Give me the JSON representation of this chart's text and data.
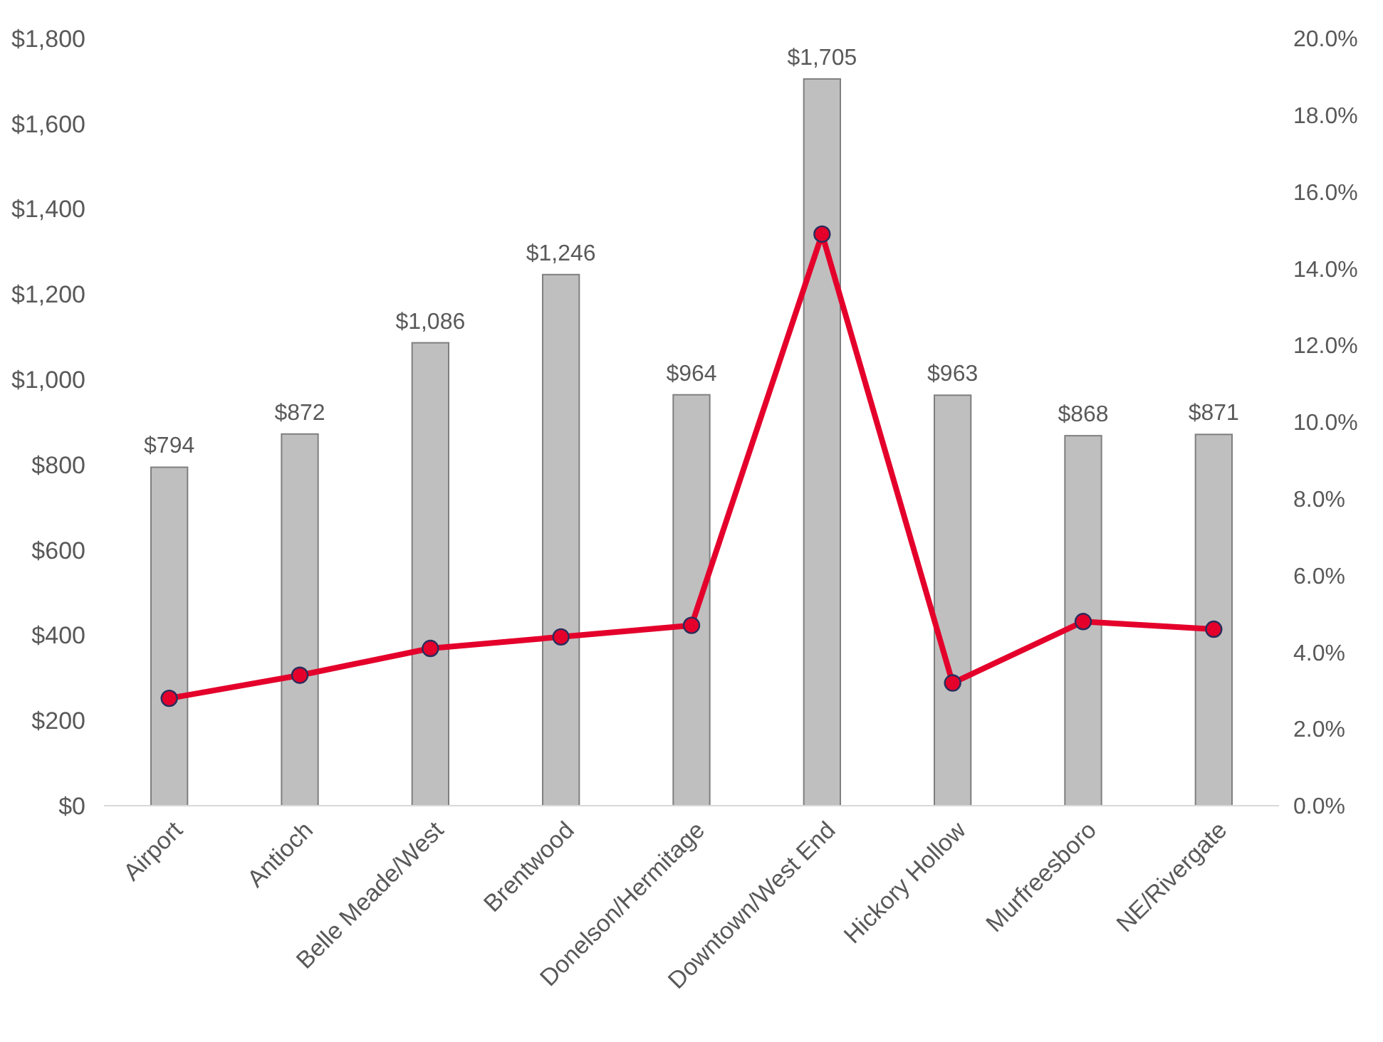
{
  "chart_data": {
    "type": "bar",
    "categories": [
      "Airport",
      "Antioch",
      "Belle Meade/West",
      "Brentwood",
      "Donelson/Hermitage",
      "Downtown/West End",
      "Hickory Hollow",
      "Murfreesboro",
      "NE/Rivergate"
    ],
    "series": [
      {
        "color": "#bfbfbf",
        "values": [
          794,
          872,
          1086,
          1246,
          964,
          1705,
          963,
          868,
          871
        ],
        "value_labels": [
          "$794",
          "$872",
          "$1,086",
          "$1,246",
          "$964",
          "$1,705",
          "$963",
          "$868",
          "$871"
        ]
      },
      {
        "type": "line",
        "axis": "y2",
        "color": "#e4002b",
        "marker": "circle",
        "values": [
          2.8,
          3.4,
          4.1,
          4.4,
          4.7,
          14.9,
          3.2,
          4.8,
          4.6
        ]
      }
    ],
    "ylim": [
      0,
      1800
    ],
    "yticks": [
      {
        "value": 0,
        "label": "$0"
      },
      {
        "value": 200,
        "label": "$200"
      },
      {
        "value": 400,
        "label": "$400"
      },
      {
        "value": 600,
        "label": "$600"
      },
      {
        "value": 800,
        "label": "$800"
      },
      {
        "value": 1000,
        "label": "$1,000"
      },
      {
        "value": 1200,
        "label": "$1,200"
      },
      {
        "value": 1400,
        "label": "$1,400"
      },
      {
        "value": 1600,
        "label": "$1,600"
      },
      {
        "value": 1800,
        "label": "$1,800"
      }
    ],
    "y2lim": [
      0,
      20
    ],
    "y2ticks": [
      {
        "value": 0,
        "label": "0.0%"
      },
      {
        "value": 2,
        "label": "2.0%"
      },
      {
        "value": 4,
        "label": "4.0%"
      },
      {
        "value": 6,
        "label": "6.0%"
      },
      {
        "value": 8,
        "label": "8.0%"
      },
      {
        "value": 10,
        "label": "10.0%"
      },
      {
        "value": 12,
        "label": "12.0%"
      },
      {
        "value": 14,
        "label": "14.0%"
      },
      {
        "value": 16,
        "label": "16.0%"
      },
      {
        "value": 18,
        "label": "18.0%"
      },
      {
        "value": 20,
        "label": "20.0%"
      }
    ],
    "grid": false
  }
}
